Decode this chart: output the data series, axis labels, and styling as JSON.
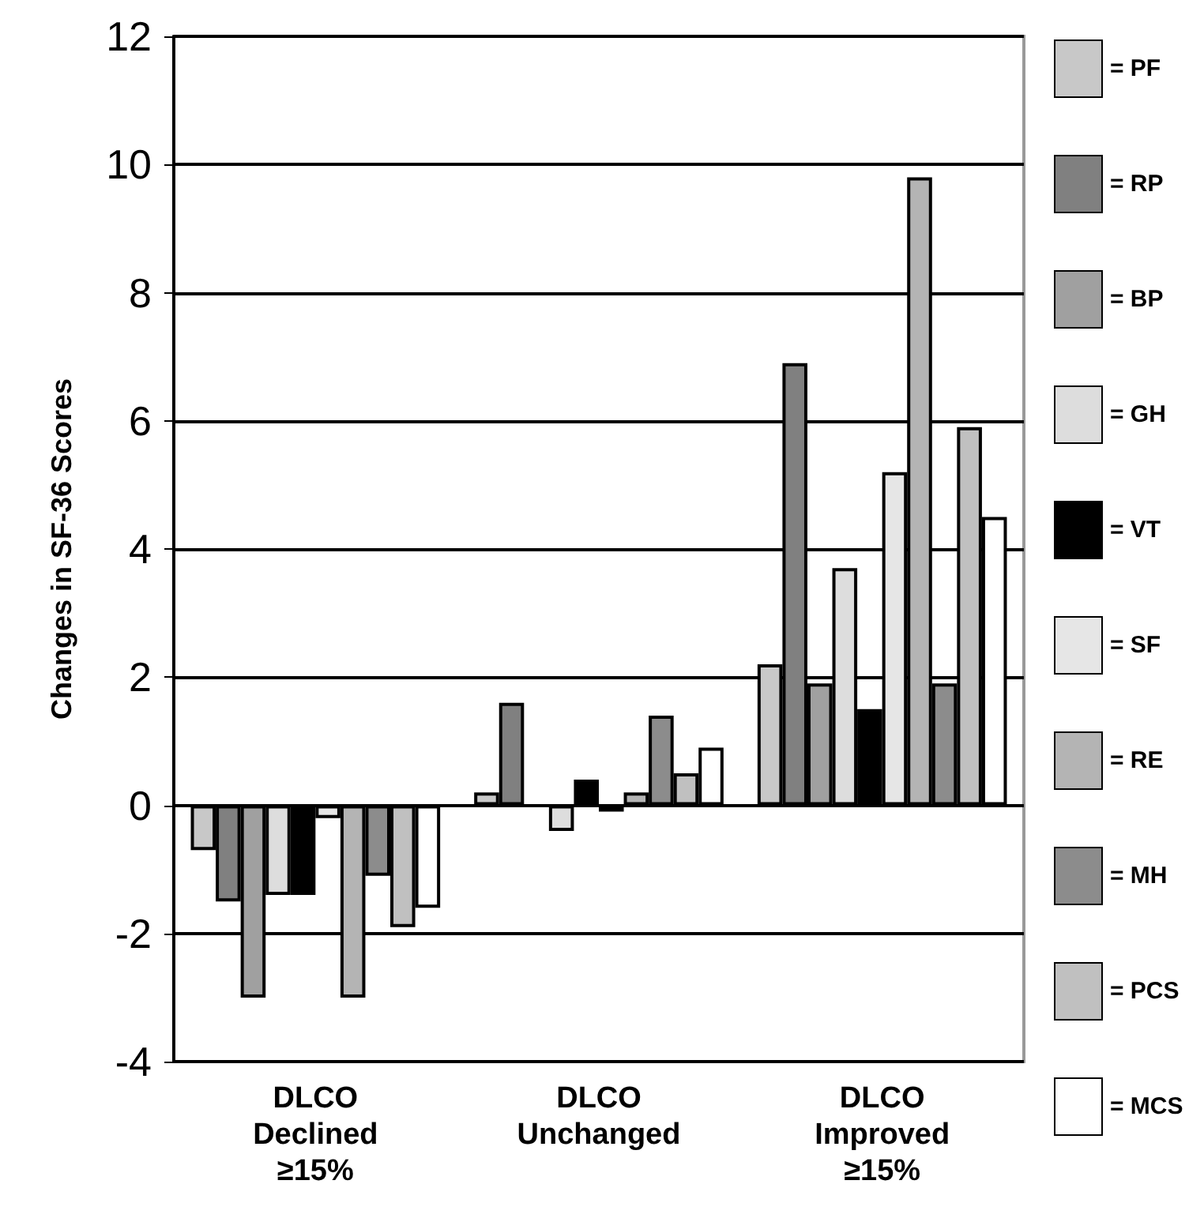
{
  "chart_data": {
    "type": "bar",
    "ylabel": "Changes in SF-36 Scores",
    "categories": [
      "DLCO\nDeclined\n≥15%",
      "DLCO\nUnchanged",
      "DLCO\nImproved\n≥15%"
    ],
    "series": [
      {
        "name": "= PF",
        "color": "#c8c8c8",
        "values": [
          -0.7,
          0.2,
          2.2
        ]
      },
      {
        "name": "= RP",
        "color": "#808080",
        "values": [
          -1.5,
          1.6,
          6.9
        ]
      },
      {
        "name": "= BP",
        "color": "#a0a0a0",
        "values": [
          -3.0,
          0,
          1.9
        ]
      },
      {
        "name": "= GH",
        "color": "#dddddd",
        "values": [
          -1.4,
          -0.4,
          3.7
        ]
      },
      {
        "name": "= VT",
        "color": "#000000",
        "values": [
          -1.4,
          0.4,
          1.5
        ]
      },
      {
        "name": "= SF",
        "color": "#e6e6e6",
        "values": [
          -0.2,
          -0.1,
          5.2
        ]
      },
      {
        "name": "= RE",
        "color": "#b4b4b4",
        "values": [
          -3.0,
          0.2,
          9.8
        ]
      },
      {
        "name": "= MH",
        "color": "#8c8c8c",
        "values": [
          -1.1,
          1.4,
          1.9
        ]
      },
      {
        "name": "= PCS",
        "color": "#c0c0c0",
        "values": [
          -1.9,
          0.5,
          5.9
        ]
      },
      {
        "name": "= MCS",
        "color": "#ffffff",
        "values": [
          -1.6,
          0.9,
          4.5
        ]
      }
    ],
    "ylim": [
      -4,
      12
    ],
    "yticks": [
      -4,
      -2,
      0,
      2,
      4,
      6,
      8,
      10,
      12
    ],
    "grid": "y",
    "legend": "right"
  }
}
